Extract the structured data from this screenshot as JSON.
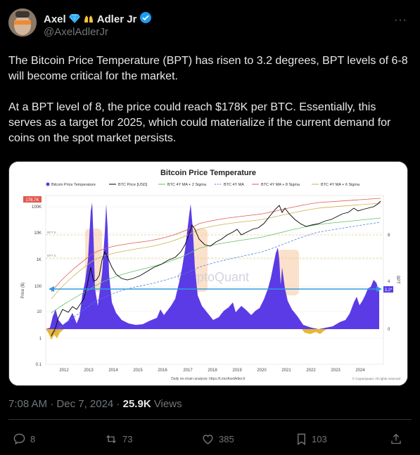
{
  "author": {
    "name": "Axel",
    "name_suffix": "Adler Jr",
    "handle": "@AxelAdlerJr"
  },
  "tweet": {
    "paragraphs": [
      "The Bitcoin Price Temperature (BPT) has risen to 3.2 degrees, BPT levels of 6-8 will become critical for the market.",
      "At a BPT level of 8, the price could reach $178K per BTC. Essentially, this serves as a target for 2025, which could materialize if the current demand for coins on the spot market persists."
    ]
  },
  "meta": {
    "time": "7:08 AM",
    "date": "Dec 7, 2024",
    "views_count": "25.9K",
    "views_label": "Views"
  },
  "actions": {
    "replies": "8",
    "reposts": "73",
    "likes": "385",
    "bookmarks": "103"
  },
  "chart": {
    "title": "Bitcoin Price Temperature",
    "legend": [
      "Bitcoin Price Temperature",
      "BTC Price [USD]",
      "BTC 4Y MA + 2 Sigma",
      "BTC 4Y MA",
      "BTC 4Y MA + 8 Sigma",
      "BTC 4Y MA + 6 Sigma"
    ],
    "y_left_ticks": [
      "100K",
      "10K",
      "1K",
      "100",
      "10",
      "1",
      "0.1"
    ],
    "y_left_label": "Price ($)",
    "y_right_label": "BPT",
    "y_right_ticks": [
      "8",
      "4",
      "0"
    ],
    "x_ticks": [
      "2012",
      "2013",
      "2014",
      "2015",
      "2016",
      "2017",
      "2018",
      "2019",
      "2020",
      "2021",
      "2022",
      "2023",
      "2024"
    ],
    "price_badge": "178.7K",
    "bpt_badge": "3.2*",
    "bpt8_label": "BPT 8",
    "bpt6_label": "BPT 6",
    "watermark": "CryptoQuant",
    "footer_center": "Daily on-chain analysis: https://t.me/AxelAdlerJr",
    "footer_right": "© CryptoQuant. All rights reserved",
    "colors": {
      "bpt": "#5b3be6",
      "price": "#000000",
      "ma2": "#5ec35e",
      "ma": "#4a7de0",
      "ma8": "#e0594f",
      "ma6": "#c9b24a",
      "highlight": "#f7c9a0",
      "arrow": "#2f9be0"
    }
  }
}
